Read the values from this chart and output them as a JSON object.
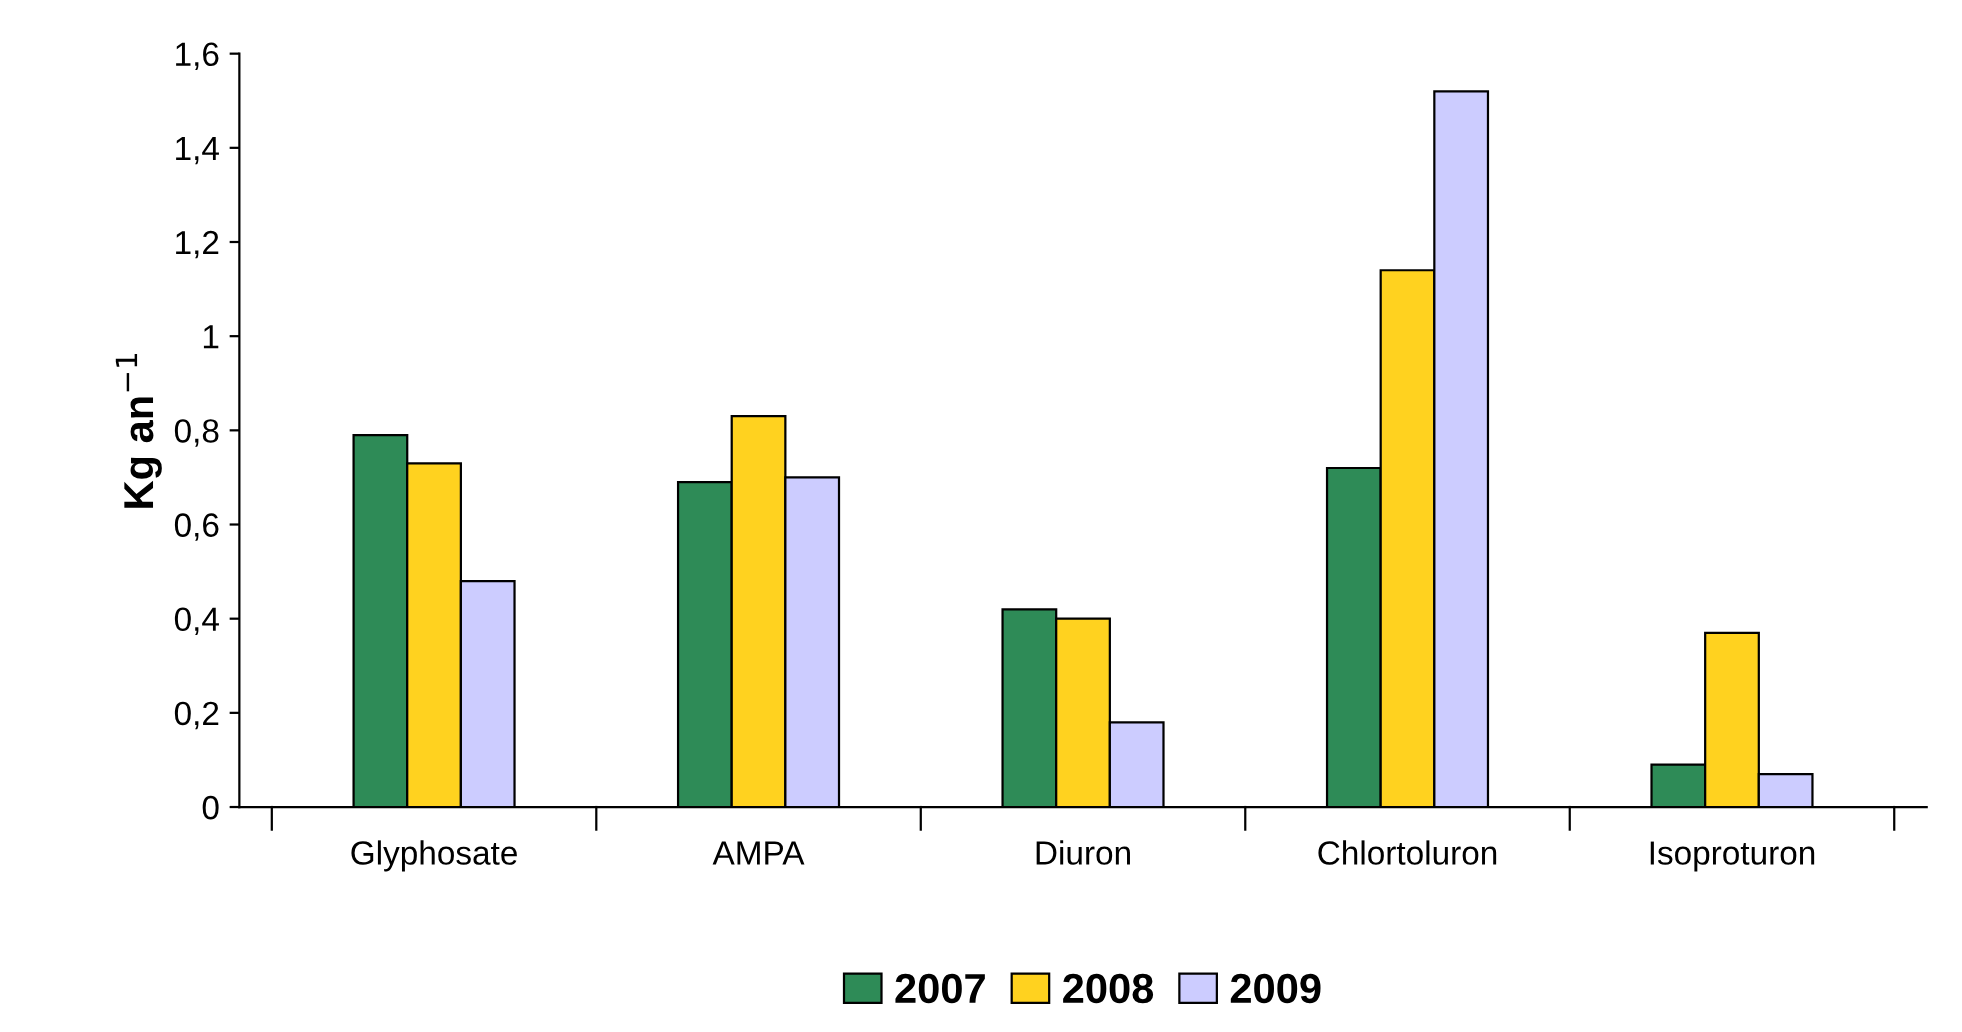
{
  "chart_data": {
    "type": "bar",
    "ylabel": "Kg an$^{−1}$",
    "categories": [
      "Glyphosate",
      "AMPA",
      "Diuron",
      "Chlortoluron",
      "Isoproturon"
    ],
    "series": [
      {
        "name": "2007",
        "color": "#2e8b57",
        "values": [
          0.79,
          0.69,
          0.42,
          0.72,
          0.09
        ]
      },
      {
        "name": "2008",
        "color": "#ffd21f",
        "values": [
          0.73,
          0.83,
          0.4,
          1.14,
          0.37
        ]
      },
      {
        "name": "2009",
        "color": "#ccccff",
        "values": [
          0.48,
          0.7,
          0.18,
          1.52,
          0.07
        ]
      }
    ],
    "ylim": [
      0,
      1.6
    ],
    "yticks": [
      0,
      {
        "value": 0.2,
        "label": "0,2"
      },
      {
        "value": 0.4,
        "label": "0,4"
      },
      {
        "value": 0.6,
        "label": "0,6"
      },
      {
        "value": 0.8,
        "label": "0,8"
      },
      1,
      {
        "value": 1.2,
        "label": "1,2"
      },
      {
        "value": 1.4,
        "label": "1,4"
      },
      {
        "value": 1.6,
        "label": "1,6"
      }
    ],
    "grid": false,
    "legend": "bottom"
  }
}
